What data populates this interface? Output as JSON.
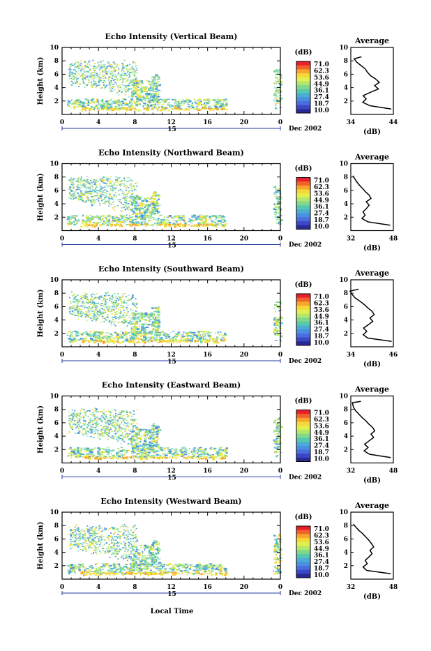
{
  "figure": {
    "x_axis_label": "Local Time",
    "date_label": "Dec 2002",
    "day_label": "15",
    "colorbar_unit": "(dB)",
    "colorbar_values": [
      "71.0",
      "62.3",
      "53.6",
      "44.9",
      "36.1",
      "27.4",
      "18.7",
      "10.0"
    ],
    "colorbar_colors": [
      "#e8202a",
      "#f2632c",
      "#f7a52d",
      "#f5d83a",
      "#e3ef4f",
      "#b2e869",
      "#7fd88c",
      "#58c8ad",
      "#4aaed2",
      "#4a8fe0",
      "#4a6ee0",
      "#3b48c6",
      "#2a2a96"
    ],
    "avg_title": "Average",
    "avg_xlabel": "(dB)"
  },
  "chart_data": [
    {
      "type": "heatmap",
      "title": "Echo Intensity (Vertical Beam)",
      "xlabel": "Local Time",
      "ylabel": "Height (km)",
      "x_ticks": [
        "0",
        "4",
        "8",
        "12",
        "16",
        "20",
        "0"
      ],
      "y_ticks": [
        "2",
        "4",
        "6",
        "8",
        "10"
      ],
      "xlim": [
        0,
        24
      ],
      "ylim": [
        0,
        10
      ],
      "clim": [
        10.0,
        71.0
      ],
      "profile": {
        "title": "Average",
        "xlabel": "(dB)",
        "xlim": [
          34,
          44
        ],
        "x_ticks": [
          "34",
          "44"
        ],
        "y_ticks": [
          "2",
          "4",
          "6",
          "8",
          "10"
        ],
        "heights": [
          0.8,
          1.3,
          1.8,
          2.3,
          2.8,
          3.3,
          3.8,
          4.3,
          4.8,
          5.3,
          5.8,
          6.3,
          6.8,
          7.3,
          7.8,
          8.3,
          8.6
        ],
        "values": [
          43.5,
          38.5,
          36.8,
          37.6,
          36.9,
          38.6,
          40.5,
          39.6,
          40.7,
          39.8,
          38.6,
          37.9,
          37.4,
          36.4,
          35.4,
          34.8,
          36.5
        ]
      }
    },
    {
      "type": "heatmap",
      "title": "Echo Intensity (Northward Beam)",
      "xlabel": "Local Time",
      "ylabel": "Height (km)",
      "x_ticks": [
        "0",
        "4",
        "8",
        "12",
        "16",
        "20",
        "0"
      ],
      "y_ticks": [
        "2",
        "4",
        "6",
        "8",
        "10"
      ],
      "xlim": [
        0,
        24
      ],
      "ylim": [
        0,
        10
      ],
      "clim": [
        10.0,
        71.0
      ],
      "profile": {
        "title": "Average",
        "xlabel": "(dB)",
        "xlim": [
          32,
          48
        ],
        "x_ticks": [
          "32",
          "48"
        ],
        "y_ticks": [
          "2",
          "4",
          "6",
          "8",
          "10"
        ],
        "heights": [
          0.8,
          1.3,
          1.8,
          2.3,
          2.8,
          3.3,
          3.8,
          4.3,
          4.8,
          5.3,
          5.8,
          6.3,
          6.8,
          7.3,
          7.8,
          8.2
        ],
        "values": [
          46.8,
          38.5,
          36.2,
          37.4,
          36.6,
          37.9,
          38.9,
          37.8,
          39.6,
          38.9,
          37.5,
          36.4,
          35.2,
          34.2,
          33.4,
          32.8
        ]
      }
    },
    {
      "type": "heatmap",
      "title": "Echo Intensity (Southward Beam)",
      "xlabel": "Local Time",
      "ylabel": "Height (km)",
      "x_ticks": [
        "0",
        "4",
        "8",
        "12",
        "16",
        "20",
        "0"
      ],
      "y_ticks": [
        "2",
        "4",
        "6",
        "8",
        "10"
      ],
      "xlim": [
        0,
        24
      ],
      "ylim": [
        0,
        10
      ],
      "clim": [
        10.0,
        71.0
      ],
      "profile": {
        "title": "Average",
        "xlabel": "(dB)",
        "xlim": [
          34,
          46
        ],
        "x_ticks": [
          "34",
          "46"
        ],
        "y_ticks": [
          "2",
          "4",
          "6",
          "8",
          "10"
        ],
        "heights": [
          0.8,
          1.3,
          1.8,
          2.3,
          2.8,
          3.3,
          3.8,
          4.3,
          4.8,
          5.3,
          5.8,
          6.3,
          6.8,
          7.3,
          7.8,
          8.3,
          8.6
        ],
        "values": [
          45.5,
          38.8,
          37.5,
          38.5,
          37.6,
          39.0,
          40.2,
          39.4,
          40.6,
          40.0,
          38.8,
          37.8,
          36.6,
          35.2,
          34.4,
          33.8,
          36.2
        ]
      }
    },
    {
      "type": "heatmap",
      "title": "Echo Intensity (Eastward Beam)",
      "xlabel": "Local Time",
      "ylabel": "Height (km)",
      "x_ticks": [
        "0",
        "4",
        "8",
        "12",
        "16",
        "20",
        "0"
      ],
      "y_ticks": [
        "2",
        "4",
        "6",
        "8",
        "10"
      ],
      "xlim": [
        0,
        24
      ],
      "ylim": [
        0,
        10
      ],
      "clim": [
        10.0,
        71.0
      ],
      "profile": {
        "title": "Average",
        "xlabel": "(dB)",
        "xlim": [
          32,
          48
        ],
        "x_ticks": [
          "32",
          "48"
        ],
        "y_ticks": [
          "2",
          "4",
          "6",
          "8",
          "10"
        ],
        "heights": [
          0.8,
          1.3,
          1.8,
          2.3,
          2.8,
          3.3,
          3.8,
          4.3,
          4.8,
          5.3,
          5.8,
          6.3,
          6.8,
          7.3,
          7.8,
          8.3,
          9.0,
          9.2
        ],
        "values": [
          47.0,
          39.0,
          37.0,
          38.5,
          37.2,
          38.9,
          40.6,
          39.6,
          41.0,
          40.2,
          38.8,
          37.6,
          36.2,
          35.0,
          33.8,
          33.0,
          32.6,
          35.8
        ]
      }
    },
    {
      "type": "heatmap",
      "title": "Echo Intensity (Westward Beam)",
      "xlabel": "Local Time",
      "ylabel": "Height (km)",
      "x_ticks": [
        "0",
        "4",
        "8",
        "12",
        "16",
        "20",
        "0"
      ],
      "y_ticks": [
        "2",
        "4",
        "6",
        "8",
        "10"
      ],
      "xlim": [
        0,
        24
      ],
      "ylim": [
        0,
        10
      ],
      "clim": [
        10.0,
        71.0
      ],
      "profile": {
        "title": "Average",
        "xlabel": "(dB)",
        "xlim": [
          32,
          48
        ],
        "x_ticks": [
          "32",
          "48"
        ],
        "y_ticks": [
          "2",
          "4",
          "6",
          "8",
          "10"
        ],
        "heights": [
          0.8,
          1.3,
          1.8,
          2.3,
          2.8,
          3.3,
          3.8,
          4.3,
          4.8,
          5.3,
          5.8,
          6.3,
          6.8,
          7.3,
          7.8,
          8.2
        ],
        "values": [
          47.0,
          38.0,
          36.6,
          38.2,
          37.4,
          38.8,
          40.0,
          39.2,
          40.6,
          39.8,
          38.8,
          37.6,
          36.4,
          35.0,
          33.8,
          33.0
        ]
      }
    }
  ]
}
